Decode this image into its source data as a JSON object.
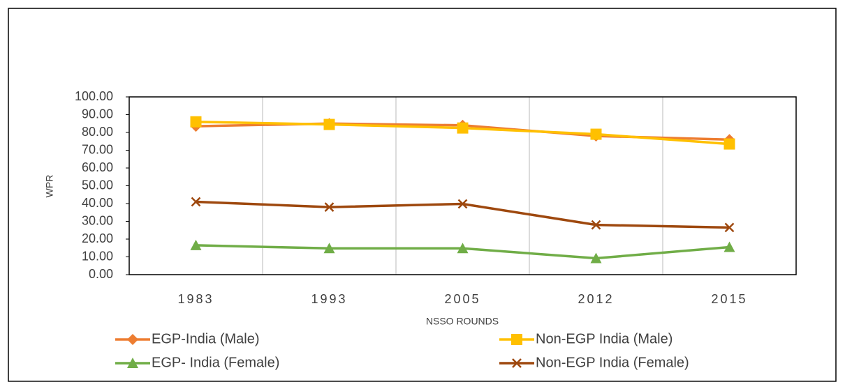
{
  "chart_data": {
    "type": "line",
    "x_label": "NSSO ROUNDS",
    "y_label": "WPR",
    "categories": [
      "1983",
      "1993",
      "2005",
      "2012",
      "2015"
    ],
    "ylim": [
      0,
      100
    ],
    "yticks": [
      {
        "value": 0,
        "label": "0.00"
      },
      {
        "value": 10,
        "label": "10.00"
      },
      {
        "value": 20,
        "label": "20.00"
      },
      {
        "value": 30,
        "label": "30.00"
      },
      {
        "value": 40,
        "label": "40.00"
      },
      {
        "value": 50,
        "label": "50.00"
      },
      {
        "value": 60,
        "label": "60.00"
      },
      {
        "value": 70,
        "label": "70.00"
      },
      {
        "value": 80,
        "label": "80.00"
      },
      {
        "value": 90,
        "label": "90.00"
      },
      {
        "value": 100,
        "label": "100.00"
      }
    ],
    "grid": true,
    "series": [
      {
        "name": "EGP-India (Male)",
        "color": "#ed7d31",
        "marker": "diamond",
        "values": [
          83.5,
          85,
          84,
          78,
          76
        ]
      },
      {
        "name": "Non-EGP India (Male)",
        "color": "#ffc000",
        "marker": "square",
        "values": [
          86,
          84.5,
          82.5,
          79,
          73.5
        ]
      },
      {
        "name": "EGP- India (Female)",
        "color": "#70ad47",
        "marker": "triangle",
        "values": [
          16.5,
          14.8,
          14.8,
          9.2,
          15.5
        ]
      },
      {
        "name": "Non-EGP India (Female)",
        "color": "#9e480e",
        "marker": "x",
        "values": [
          41,
          38,
          39.8,
          28,
          26.5
        ]
      }
    ]
  }
}
